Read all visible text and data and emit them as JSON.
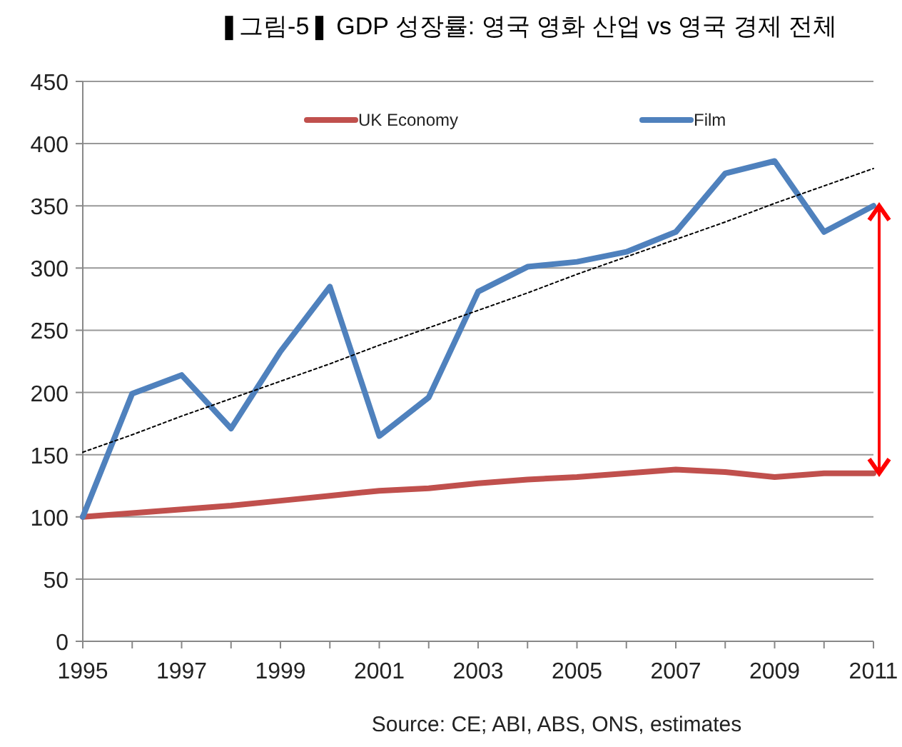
{
  "chart_data": {
    "type": "line",
    "title": "❚그림-5❚ GDP 성장률: 영국 영화 산업 vs 영국 경제 전체",
    "categories": [
      "1995",
      null,
      "1997",
      null,
      "1999",
      null,
      "2001",
      null,
      "2003",
      null,
      "2005",
      null,
      "2007",
      null,
      "2009",
      null,
      "2011"
    ],
    "series": [
      {
        "name": "UK Economy",
        "color": "#c0504d",
        "values": [
          100,
          103,
          106,
          109,
          113,
          117,
          121,
          123,
          127,
          130,
          132,
          135,
          138,
          136,
          132,
          135,
          135
        ]
      },
      {
        "name": "Film",
        "color": "#4f81bd",
        "values": [
          100,
          199,
          214,
          171,
          233,
          285,
          165,
          196,
          281,
          301,
          305,
          313,
          329,
          376,
          386,
          329,
          350
        ]
      },
      {
        "type": "line",
        "color": "#000000",
        "line_style": "dotted",
        "values": [
          152,
          166,
          181,
          195,
          209,
          223,
          238,
          252,
          266,
          280,
          295,
          309,
          323,
          337,
          352,
          366,
          380
        ]
      }
    ],
    "ylim": [
      0,
      450
    ],
    "yticks": [
      0,
      50,
      100,
      150,
      200,
      250,
      300,
      350,
      400,
      450
    ],
    "grid": "y",
    "legend": "top",
    "marker": "none",
    "line_style": "solid",
    "annotations": [
      "Source: CE; ABI, ABS, ONS, estimates"
    ]
  }
}
